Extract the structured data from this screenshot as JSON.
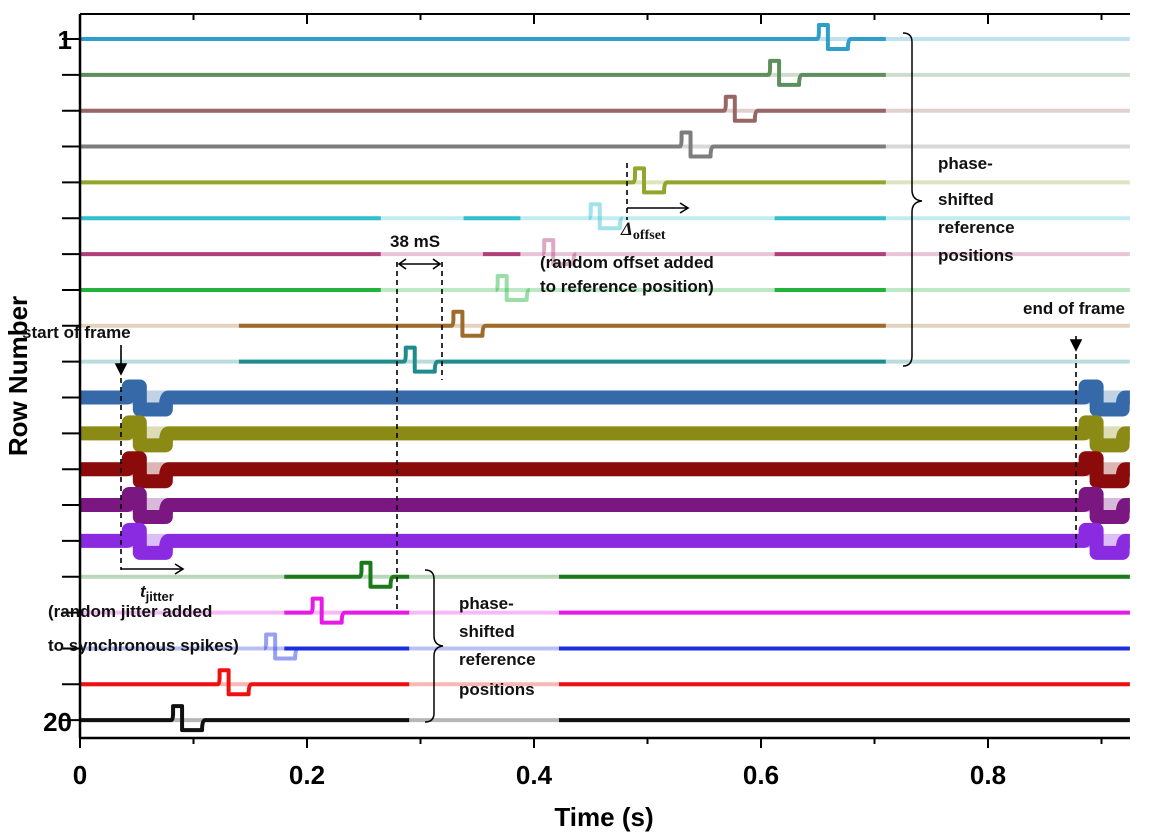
{
  "chart_data": {
    "type": "line",
    "xlabel": "Time (s)",
    "ylabel": "Row Number",
    "xlim": [
      0,
      0.925
    ],
    "x_ticks": [
      "0",
      "0.2",
      "0.4",
      "0.6",
      "0.8"
    ],
    "y_ticks": [
      "1",
      "20"
    ],
    "series": [
      {
        "row": 1,
        "color": "#2F9FC9",
        "thin": true,
        "spikes": [
          0.651
        ],
        "fade_start": 0.71
      },
      {
        "row": 2,
        "color": "#5E8E5E",
        "thin": true,
        "spikes": [
          0.608
        ],
        "fade_start": 0.71
      },
      {
        "row": 3,
        "color": "#996666",
        "thin": true,
        "spikes": [
          0.569
        ],
        "fade_start": 0.71
      },
      {
        "row": 4,
        "color": "#7D7D7D",
        "thin": true,
        "spikes": [
          0.53
        ],
        "fade_start": 0.71
      },
      {
        "row": 5,
        "color": "#93A62B",
        "thin": true,
        "spikes": [
          0.489
        ],
        "fade_start": 0.71
      },
      {
        "row": 6,
        "color": "#33BFCC",
        "thin": true,
        "spikes": [
          0.45
        ],
        "segments": [
          [
            0.0,
            0.265
          ],
          [
            0.338,
            0.388
          ],
          [
            0.612,
            0.71
          ]
        ]
      },
      {
        "row": 7,
        "color": "#B0407A",
        "thin": true,
        "spikes": [
          0.409
        ],
        "segments": [
          [
            0.0,
            0.265
          ],
          [
            0.355,
            0.388
          ],
          [
            0.612,
            0.71
          ]
        ]
      },
      {
        "row": 8,
        "color": "#22B33C",
        "thin": true,
        "spikes": [
          0.368
        ],
        "segments": [
          [
            0.0,
            0.265
          ],
          [
            0.612,
            0.71
          ]
        ]
      },
      {
        "row": 9,
        "color": "#9E6B2A",
        "thin": true,
        "spikes": [
          0.329
        ],
        "segments": [
          [
            0.14,
            0.71
          ]
        ]
      },
      {
        "row": 10,
        "color": "#1E8C8C",
        "thin": true,
        "spikes": [
          0.287
        ],
        "segments": [
          [
            0.14,
            0.71
          ]
        ]
      },
      {
        "row": 11,
        "color": "#3569A8",
        "thin": false,
        "spikes": [
          0.043,
          0.886
        ]
      },
      {
        "row": 12,
        "color": "#8A8A14",
        "thin": false,
        "spikes": [
          0.043,
          0.886
        ]
      },
      {
        "row": 13,
        "color": "#8B0A0A",
        "thin": false,
        "spikes": [
          0.043,
          0.886
        ]
      },
      {
        "row": 14,
        "color": "#7A1780",
        "thin": false,
        "spikes": [
          0.043,
          0.886
        ]
      },
      {
        "row": 15,
        "color": "#8A2BE2",
        "thin": false,
        "spikes": [
          0.043,
          0.886
        ]
      },
      {
        "row": 16,
        "color": "#1A7A1A",
        "thin": true,
        "spikes": [
          0.248
        ],
        "segments": [
          [
            0.18,
            0.29
          ],
          [
            0.422,
            0.925
          ]
        ]
      },
      {
        "row": 17,
        "color": "#E619E6",
        "thin": true,
        "spikes": [
          0.205
        ],
        "segments": [
          [
            0.18,
            0.29
          ],
          [
            0.422,
            0.925
          ]
        ]
      },
      {
        "row": 18,
        "color": "#1A2EE0",
        "thin": true,
        "spikes": [
          0.164
        ],
        "segments": [
          [
            0.18,
            0.29
          ],
          [
            0.422,
            0.925
          ]
        ]
      },
      {
        "row": 19,
        "color": "#EE1111",
        "thin": true,
        "spikes": [
          0.123
        ],
        "segments": [
          [
            0.0,
            0.29
          ],
          [
            0.422,
            0.925
          ]
        ]
      },
      {
        "row": 20,
        "color": "#111111",
        "thin": true,
        "spikes": [
          0.082
        ],
        "segments": [
          [
            0.0,
            0.29
          ],
          [
            0.422,
            0.925
          ]
        ]
      }
    ],
    "annotations": {
      "interval_label": "38 mS",
      "offset_symbol": "Δ",
      "offset_sub": "offset",
      "offset_desc_1": "(random offset added",
      "offset_desc_2": "to reference position)",
      "start_label": "start of frame",
      "end_label": "end of  frame",
      "jitter_symbol": "t",
      "jitter_sub": "jitter",
      "jitter_desc_1": "(random jitter added",
      "jitter_desc_2": "to synchronous  spikes)",
      "upper_brace_1": "phase-",
      "upper_brace_2": "shifted",
      "upper_brace_3": "reference",
      "upper_brace_4": "positions",
      "lower_brace_1": "phase-",
      "lower_brace_2": "shifted",
      "lower_brace_3": "reference",
      "lower_brace_4": "positions"
    }
  }
}
